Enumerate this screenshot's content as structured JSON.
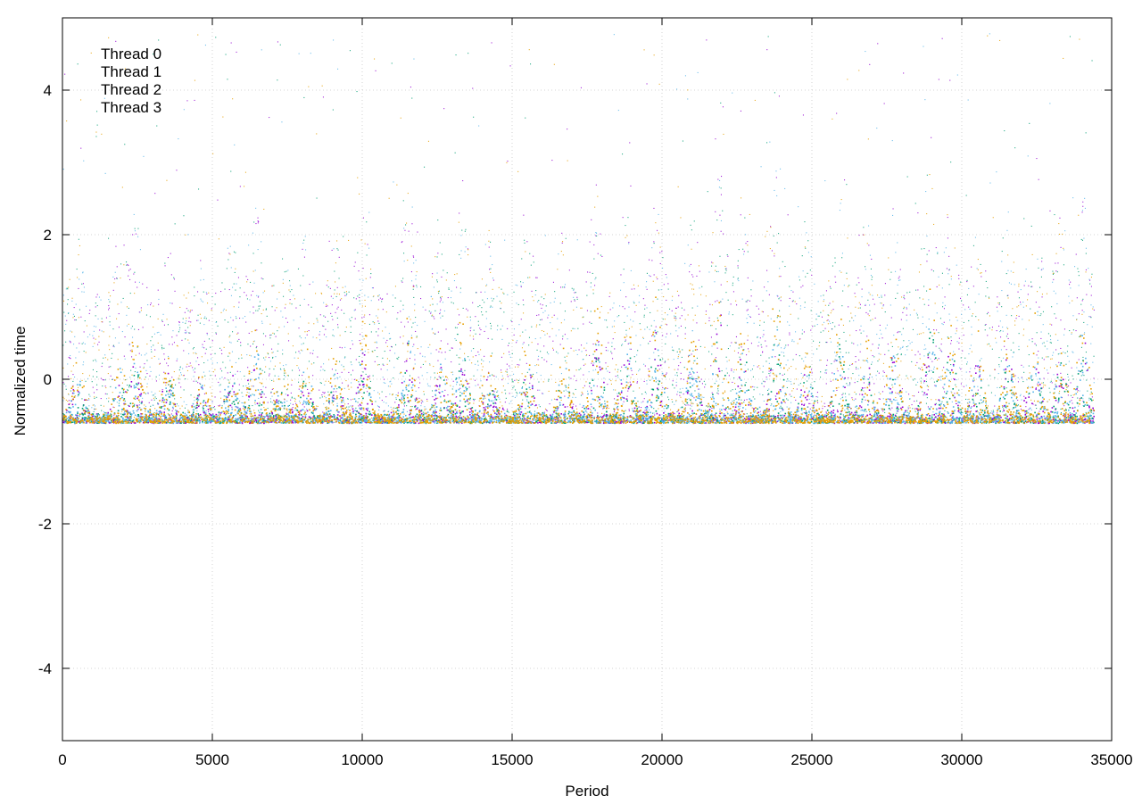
{
  "chart_data": {
    "type": "scatter",
    "title": "",
    "xlabel": "Period",
    "ylabel": "Normalized time",
    "xlim": [
      0,
      35000
    ],
    "ylim": [
      -5,
      5
    ],
    "xticks": [
      0,
      5000,
      10000,
      15000,
      20000,
      25000,
      30000,
      35000
    ],
    "yticks": [
      4,
      2,
      0,
      -2,
      -4
    ],
    "grid": true,
    "legend_position": "top-left",
    "x_data_range": [
      0,
      34400
    ],
    "baseline": -0.6,
    "series": [
      {
        "name": "Thread 0",
        "color": "#9400d3",
        "description_values": {
          "baseline": -0.6,
          "typical_spread": [
            -0.7,
            2.5
          ],
          "max": 4.9
        }
      },
      {
        "name": "Thread 1",
        "color": "#009e73",
        "description_values": {
          "baseline": -0.6,
          "typical_spread": [
            -0.7,
            2.5
          ],
          "max": 4.9
        }
      },
      {
        "name": "Thread 2",
        "color": "#56b4e9",
        "description_values": {
          "baseline": -0.6,
          "typical_spread": [
            -0.7,
            2.5
          ],
          "max": 4.9
        }
      },
      {
        "name": "Thread 3",
        "color": "#e69f00",
        "description_values": {
          "baseline": -0.6,
          "typical_spread": [
            -0.7,
            2.5
          ],
          "max": 4.9
        }
      }
    ],
    "bursts": [
      [
        500,
        0.9
      ],
      [
        1900,
        1.0
      ],
      [
        2400,
        1.2
      ],
      [
        3500,
        0.9
      ],
      [
        4600,
        0.7
      ],
      [
        5600,
        0.9
      ],
      [
        6400,
        1.5
      ],
      [
        7300,
        0.8
      ],
      [
        8100,
        1.0
      ],
      [
        9100,
        0.9
      ],
      [
        10000,
        1.4
      ],
      [
        11500,
        1.6
      ],
      [
        12600,
        1.1
      ],
      [
        13300,
        1.4
      ],
      [
        14200,
        1.0
      ],
      [
        15500,
        1.2
      ],
      [
        16700,
        1.0
      ],
      [
        17800,
        1.7
      ],
      [
        18800,
        1.5
      ],
      [
        19800,
        1.8
      ],
      [
        21000,
        1.2
      ],
      [
        21900,
        2.0
      ],
      [
        22700,
        1.4
      ],
      [
        23800,
        1.9
      ],
      [
        24800,
        1.0
      ],
      [
        25900,
        1.5
      ],
      [
        26800,
        1.2
      ],
      [
        27700,
        1.3
      ],
      [
        28900,
        2.1
      ],
      [
        29600,
        1.4
      ],
      [
        30500,
        1.2
      ],
      [
        31500,
        1.3
      ],
      [
        32400,
        1.5
      ],
      [
        33300,
        1.2
      ],
      [
        34000,
        1.8
      ]
    ]
  }
}
